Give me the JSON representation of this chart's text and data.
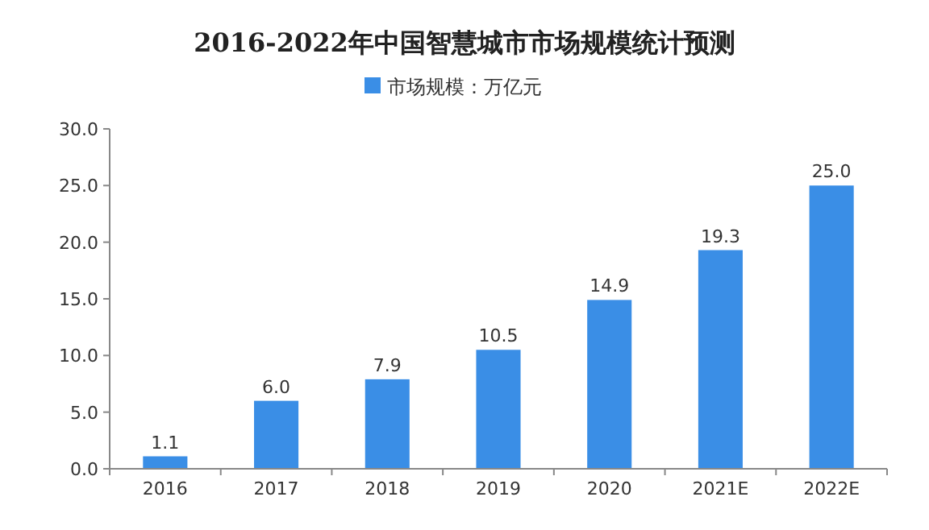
{
  "chart_data": {
    "type": "bar",
    "title": "2016-2022年中国智慧城市市场规模统计预测",
    "categories": [
      "2016",
      "2017",
      "2018",
      "2019",
      "2020",
      "2021E",
      "2022E"
    ],
    "series": [
      {
        "name": "市场规模：万亿元",
        "color": "#3a8ee6",
        "values": [
          1.1,
          6.0,
          7.9,
          10.5,
          14.9,
          19.3,
          25.0
        ]
      }
    ],
    "value_labels": [
      "1.1",
      "6.0",
      "7.9",
      "10.5",
      "14.9",
      "19.3",
      "25.0"
    ],
    "ylim": [
      0,
      30
    ],
    "yticks": [
      {
        "value": 0,
        "label": "0.0"
      },
      {
        "value": 5,
        "label": "5.0"
      },
      {
        "value": 10,
        "label": "10.0"
      },
      {
        "value": 15,
        "label": "15.0"
      },
      {
        "value": 20,
        "label": "20.0"
      },
      {
        "value": 25,
        "label": "25.0"
      },
      {
        "value": 30,
        "label": "30.0"
      }
    ],
    "legend": "top",
    "grid": false
  }
}
